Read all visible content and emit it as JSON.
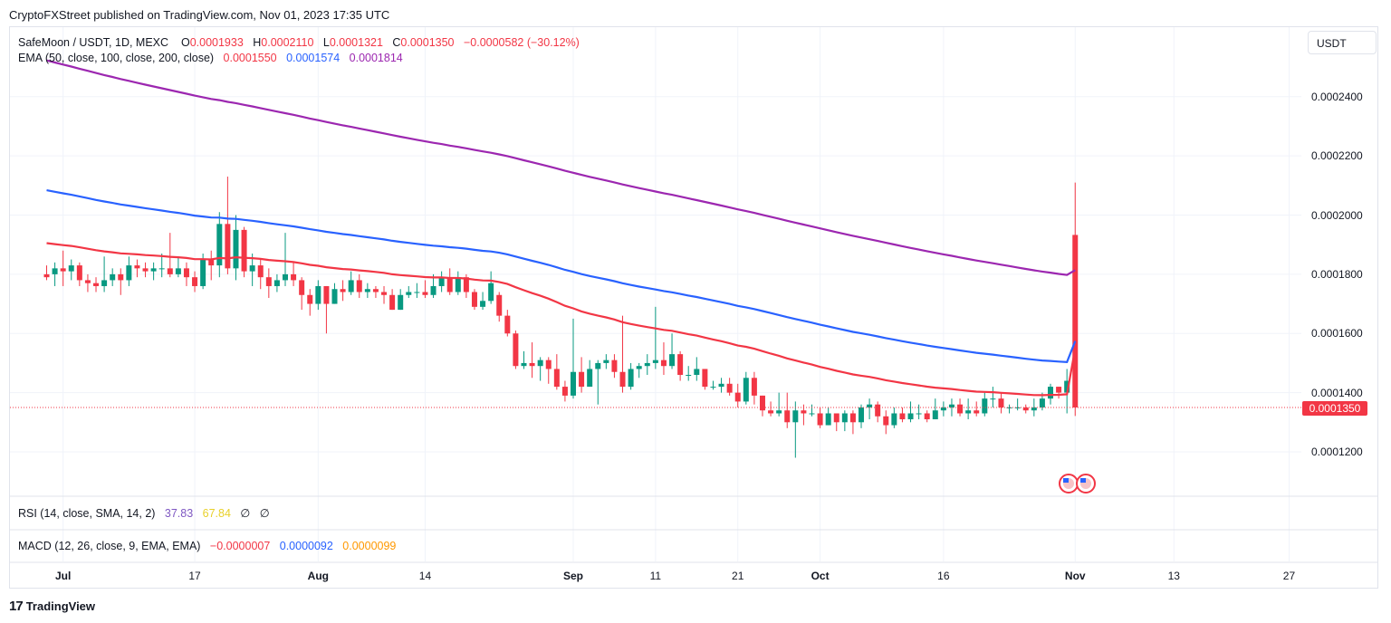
{
  "header": {
    "publish_line": "CryptoFXStreet published on TradingView.com, Nov 01, 2023 17:35 UTC"
  },
  "legend": {
    "symbol": "SafeMoon / USDT, 1D, MEXC",
    "open_label": "O",
    "open": "0.0001933",
    "high_label": "H",
    "high": "0.0002110",
    "low_label": "L",
    "low": "0.0001321",
    "close_label": "C",
    "close": "0.0001350",
    "change": "−0.0000582 (−30.12%)",
    "ema_label": "EMA (50, close, 100, close, 200, close)",
    "ema50": "0.0001550",
    "ema100": "0.0001574",
    "ema200": "0.0001814"
  },
  "rsi": {
    "label": "RSI (14, close, SMA, 14, 2)",
    "value": "37.83",
    "sma": "67.84",
    "empty1": "∅",
    "empty2": "∅"
  },
  "macd": {
    "label": "MACD (12, 26, close, 9, EMA, EMA)",
    "macd": "−0.0000007",
    "signal": "0.0000092",
    "hist": "0.0000099"
  },
  "currency_button": "USDT",
  "last_price_tag": "0.0001350",
  "footer": {
    "brand": "TradingView",
    "logo_glyph": "17"
  },
  "colors": {
    "up": "#089981",
    "down": "#f23645",
    "ema50": "#f23645",
    "ema100": "#2962ff",
    "ema200": "#9c27b0"
  },
  "chart_data": {
    "type": "candlestick",
    "ylim": [
      0.000105,
      0.0002635
    ],
    "yticks": [
      "0.0001200",
      "0.0001400",
      "0.0001600",
      "0.0001800",
      "0.0002000",
      "0.0002200",
      "0.0002400"
    ],
    "xticks": [
      {
        "label": "Jul",
        "day": 2
      },
      {
        "label": "17",
        "day": 18
      },
      {
        "label": "Aug",
        "day": 33
      },
      {
        "label": "14",
        "day": 46
      },
      {
        "label": "Sep",
        "day": 64
      },
      {
        "label": "11",
        "day": 74
      },
      {
        "label": "21",
        "day": 84
      },
      {
        "label": "Oct",
        "day": 94
      },
      {
        "label": "16",
        "day": 109
      },
      {
        "label": "Nov",
        "day": 125
      },
      {
        "label": "13",
        "day": 137
      },
      {
        "label": "27",
        "day": 151
      }
    ],
    "candles": [
      [
        0.00018,
        0.000179,
        0.000183,
        0.000178
      ],
      [
        0.00018,
        0.000182,
        0.000184,
        0.000176
      ],
      [
        0.000182,
        0.000181,
        0.000188,
        0.000176
      ],
      [
        0.000181,
        0.000183,
        0.000185,
        0.000178
      ],
      [
        0.000183,
        0.000178,
        0.000184,
        0.000176
      ],
      [
        0.000178,
        0.000177,
        0.00018,
        0.000174
      ],
      [
        0.000177,
        0.000176,
        0.000179,
        0.000174
      ],
      [
        0.000176,
        0.000178,
        0.000186,
        0.000174
      ],
      [
        0.000178,
        0.00018,
        0.000182,
        0.000176
      ],
      [
        0.00018,
        0.000178,
        0.000182,
        0.000173
      ],
      [
        0.000178,
        0.000183,
        0.000186,
        0.000176
      ],
      [
        0.000183,
        0.000182,
        0.000185,
        0.000179
      ],
      [
        0.000182,
        0.000181,
        0.000184,
        0.000179
      ],
      [
        0.000181,
        0.000182,
        0.000184,
        0.000178
      ],
      [
        0.000182,
        0.000182,
        0.000187,
        0.000179
      ],
      [
        0.000182,
        0.00018,
        0.000194,
        0.000179
      ],
      [
        0.00018,
        0.000182,
        0.000186,
        0.000179
      ],
      [
        0.000182,
        0.000179,
        0.000184,
        0.000176
      ],
      [
        0.000179,
        0.000176,
        0.000181,
        0.000174
      ],
      [
        0.000176,
        0.000185,
        0.000187,
        0.000175
      ],
      [
        0.000185,
        0.000183,
        0.000188,
        0.000178
      ],
      [
        0.000183,
        0.000197,
        0.000201,
        0.000179
      ],
      [
        0.000197,
        0.000182,
        0.000213,
        0.00018
      ],
      [
        0.000182,
        0.000195,
        0.0002,
        0.000178
      ],
      [
        0.000195,
        0.000181,
        0.000196,
        0.000179
      ],
      [
        0.000181,
        0.000183,
        0.000187,
        0.000176
      ],
      [
        0.000183,
        0.000179,
        0.000185,
        0.000175
      ],
      [
        0.000179,
        0.000176,
        0.000182,
        0.000172
      ],
      [
        0.000176,
        0.000178,
        0.00018,
        0.000174
      ],
      [
        0.000178,
        0.00018,
        0.000194,
        0.000176
      ],
      [
        0.00018,
        0.000178,
        0.000184,
        0.000176
      ],
      [
        0.000178,
        0.000173,
        0.000179,
        0.000168
      ],
      [
        0.000173,
        0.00017,
        0.000175,
        0.000166
      ],
      [
        0.00017,
        0.000176,
        0.000178,
        0.000168
      ],
      [
        0.000176,
        0.00017,
        0.000176,
        0.00016
      ],
      [
        0.00017,
        0.000175,
        0.000177,
        0.00017
      ],
      [
        0.000175,
        0.000174,
        0.000178,
        0.000171
      ],
      [
        0.000174,
        0.000178,
        0.000181,
        0.000173
      ],
      [
        0.000178,
        0.000174,
        0.00018,
        0.000172
      ],
      [
        0.000174,
        0.000175,
        0.000177,
        0.000172
      ],
      [
        0.000175,
        0.000174,
        0.000176,
        0.000172
      ],
      [
        0.000174,
        0.000173,
        0.000176,
        0.00017
      ],
      [
        0.000173,
        0.000168,
        0.000175,
        0.000168
      ],
      [
        0.000168,
        0.000173,
        0.000175,
        0.000168
      ],
      [
        0.000173,
        0.000174,
        0.000176,
        0.000172
      ],
      [
        0.000174,
        0.000174,
        0.000177,
        0.000172
      ],
      [
        0.000174,
        0.000173,
        0.000178,
        0.000172
      ],
      [
        0.000173,
        0.000176,
        0.00018,
        0.000172
      ],
      [
        0.000176,
        0.000179,
        0.000181,
        0.000174
      ],
      [
        0.000179,
        0.000174,
        0.000182,
        0.000173
      ],
      [
        0.000174,
        0.000179,
        0.000181,
        0.000173
      ],
      [
        0.000179,
        0.000174,
        0.00018,
        0.000172
      ],
      [
        0.000174,
        0.000169,
        0.000175,
        0.000168
      ],
      [
        0.000169,
        0.000171,
        0.000174,
        0.000168
      ],
      [
        0.000171,
        0.000177,
        0.000181,
        0.00017
      ],
      [
        0.000173,
        0.000166,
        0.000174,
        0.000164
      ],
      [
        0.000166,
        0.00016,
        0.000168,
        0.000159
      ],
      [
        0.00016,
        0.000149,
        0.000161,
        0.000148
      ],
      [
        0.000149,
        0.00015,
        0.000154,
        0.000148
      ],
      [
        0.00015,
        0.000149,
        0.000157,
        0.000145
      ],
      [
        0.000149,
        0.000151,
        0.000152,
        0.000144
      ],
      [
        0.000151,
        0.000148,
        0.000152,
        0.000143
      ],
      [
        0.000148,
        0.000142,
        0.000153,
        0.000141
      ],
      [
        0.000142,
        0.000139,
        0.000144,
        0.000137
      ],
      [
        0.000139,
        0.000147,
        0.000165,
        0.000138
      ],
      [
        0.000147,
        0.000142,
        0.000152,
        0.00014
      ],
      [
        0.000142,
        0.000148,
        0.000151,
        0.000142
      ],
      [
        0.000148,
        0.00015,
        0.000151,
        0.000136
      ],
      [
        0.00015,
        0.000151,
        0.000153,
        0.000148
      ],
      [
        0.000151,
        0.000147,
        0.000153,
        0.000145
      ],
      [
        0.000147,
        0.000142,
        0.000166,
        0.00014
      ],
      [
        0.000142,
        0.000148,
        0.00015,
        0.000141
      ],
      [
        0.000148,
        0.000149,
        0.00015,
        0.000145
      ],
      [
        0.000149,
        0.00015,
        0.000153,
        0.000146
      ],
      [
        0.00015,
        0.000151,
        0.000169,
        0.000148
      ],
      [
        0.000151,
        0.000149,
        0.000157,
        0.000146
      ],
      [
        0.000149,
        0.000153,
        0.00016,
        0.000148
      ],
      [
        0.000153,
        0.000146,
        0.000154,
        0.000144
      ],
      [
        0.000146,
        0.000146,
        0.000149,
        0.000144
      ],
      [
        0.000146,
        0.000148,
        0.000152,
        0.000144
      ],
      [
        0.000148,
        0.000142,
        0.000148,
        0.000141
      ],
      [
        0.000142,
        0.000142,
        0.000144,
        0.000141
      ],
      [
        0.000142,
        0.000143,
        0.000145,
        0.00014
      ],
      [
        0.000143,
        0.00014,
        0.000145,
        0.000139
      ],
      [
        0.00014,
        0.000137,
        0.000143,
        0.000135
      ],
      [
        0.000137,
        0.000145,
        0.000147,
        0.000136
      ],
      [
        0.000145,
        0.000139,
        0.000147,
        0.000136
      ],
      [
        0.000139,
        0.000134,
        0.000139,
        0.000132
      ],
      [
        0.000134,
        0.000133,
        0.000137,
        0.000132
      ],
      [
        0.000133,
        0.000134,
        0.00014,
        0.000132
      ],
      [
        0.000134,
        0.00013,
        0.00014,
        0.000128
      ],
      [
        0.00013,
        0.000134,
        0.000137,
        0.000118
      ],
      [
        0.000134,
        0.000133,
        0.000136,
        0.000129
      ],
      [
        0.000133,
        0.000133,
        0.000136,
        0.000132
      ],
      [
        0.000133,
        0.000129,
        0.000135,
        0.000128
      ],
      [
        0.000129,
        0.000133,
        0.000135,
        0.000129
      ],
      [
        0.000133,
        0.00013,
        0.000133,
        0.000127
      ],
      [
        0.00013,
        0.000133,
        0.000134,
        0.000127
      ],
      [
        0.000133,
        0.00013,
        0.000134,
        0.000126
      ],
      [
        0.00013,
        0.000135,
        0.000136,
        0.000128
      ],
      [
        0.000135,
        0.000136,
        0.000138,
        0.000131
      ],
      [
        0.000136,
        0.000132,
        0.000137,
        0.00013
      ],
      [
        0.000132,
        0.000129,
        0.000134,
        0.000126
      ],
      [
        0.000129,
        0.000133,
        0.000135,
        0.000128
      ],
      [
        0.000133,
        0.000131,
        0.000135,
        0.00013
      ],
      [
        0.000131,
        0.000133,
        0.000137,
        0.00013
      ],
      [
        0.000133,
        0.000133,
        0.000136,
        0.000131
      ],
      [
        0.000133,
        0.000131,
        0.000134,
        0.00013
      ],
      [
        0.000131,
        0.000134,
        0.000138,
        0.000131
      ],
      [
        0.000134,
        0.000135,
        0.000137,
        0.000132
      ],
      [
        0.000135,
        0.000136,
        0.000138,
        0.000132
      ],
      [
        0.000136,
        0.000133,
        0.000138,
        0.000132
      ],
      [
        0.000133,
        0.000134,
        0.000138,
        0.000131
      ],
      [
        0.000134,
        0.000133,
        0.000137,
        0.000132
      ],
      [
        0.000133,
        0.000138,
        0.00014,
        0.000132
      ],
      [
        0.000138,
        0.000138,
        0.000142,
        0.000135
      ],
      [
        0.000138,
        0.000135,
        0.00014,
        0.000133
      ],
      [
        0.000135,
        0.000135,
        0.000136,
        0.000133
      ],
      [
        0.000135,
        0.000135,
        0.000138,
        0.000134
      ],
      [
        0.000135,
        0.000134,
        0.000136,
        0.000133
      ],
      [
        0.000134,
        0.000135,
        0.000138,
        0.000132
      ],
      [
        0.000135,
        0.000138,
        0.00014,
        0.000134
      ],
      [
        0.000138,
        0.000142,
        0.000143,
        0.000136
      ],
      [
        0.000142,
        0.00014,
        0.000142,
        0.000138
      ],
      [
        0.00014,
        0.000144,
        0.000148,
        0.000133
      ]
    ]
  }
}
